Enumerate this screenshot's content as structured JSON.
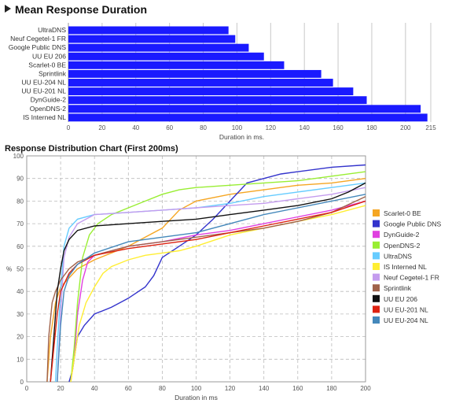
{
  "titles": {
    "bar_title": "Mean Response Duration",
    "line_title": "Response Distribution Chart (First 200ms)"
  },
  "chart_data": [
    {
      "type": "bar",
      "orientation": "horizontal",
      "title": "Mean Response Duration",
      "xlabel": "Duration in ms.",
      "ylabel": "",
      "xlim": [
        0,
        215
      ],
      "xticks": [
        0,
        20,
        40,
        60,
        80,
        100,
        120,
        140,
        160,
        180,
        200,
        215
      ],
      "grid": true,
      "bar_color": "#1a1aff",
      "categories": [
        "UltraDNS",
        "Neuf Cegetel-1 FR",
        "Google Public DNS",
        "UU EU 206",
        "Scarlet-0 BE",
        "Sprintlink",
        "UU EU-204 NL",
        "UU EU-201 NL",
        "DynGuide-2",
        "OpenDNS-2",
        "IS Interned NL"
      ],
      "values": [
        95,
        99,
        107,
        116,
        128,
        150,
        157,
        169,
        177,
        209,
        213
      ]
    },
    {
      "type": "line",
      "title": "Response Distribution Chart (First 200ms)",
      "xlabel": "Duration in ms",
      "ylabel": "%",
      "xlim": [
        0,
        200
      ],
      "ylim": [
        0,
        100
      ],
      "xticks": [
        0,
        20,
        40,
        60,
        80,
        100,
        120,
        140,
        160,
        180,
        200
      ],
      "yticks": [
        0,
        10,
        20,
        30,
        40,
        50,
        60,
        70,
        80,
        90,
        100
      ],
      "grid": true,
      "legend_position": "right",
      "series": [
        {
          "name": "Scarlet-0 BE",
          "color": "#f5a623",
          "points": [
            [
              12,
              0
            ],
            [
              14,
              20
            ],
            [
              17,
              35
            ],
            [
              20,
              42
            ],
            [
              25,
              46
            ],
            [
              30,
              50
            ],
            [
              40,
              54
            ],
            [
              50,
              57
            ],
            [
              60,
              60
            ],
            [
              70,
              64
            ],
            [
              80,
              68
            ],
            [
              90,
              76
            ],
            [
              100,
              80
            ],
            [
              120,
              83
            ],
            [
              140,
              85
            ],
            [
              160,
              87
            ],
            [
              180,
              88
            ],
            [
              200,
              90
            ]
          ]
        },
        {
          "name": "Google Public DNS",
          "color": "#3333cc",
          "points": [
            [
              25,
              0
            ],
            [
              27,
              5
            ],
            [
              30,
              20
            ],
            [
              34,
              25
            ],
            [
              40,
              30
            ],
            [
              50,
              33
            ],
            [
              60,
              37
            ],
            [
              70,
              42
            ],
            [
              75,
              47
            ],
            [
              80,
              55
            ],
            [
              90,
              60
            ],
            [
              100,
              65
            ],
            [
              110,
              72
            ],
            [
              120,
              80
            ],
            [
              130,
              88
            ],
            [
              140,
              90
            ],
            [
              150,
              92
            ],
            [
              160,
              93
            ],
            [
              180,
              95
            ],
            [
              200,
              96
            ]
          ]
        },
        {
          "name": "DynGuide-2",
          "color": "#e040e0",
          "points": [
            [
              26,
              0
            ],
            [
              28,
              10
            ],
            [
              30,
              30
            ],
            [
              33,
              45
            ],
            [
              36,
              53
            ],
            [
              40,
              56
            ],
            [
              50,
              58
            ],
            [
              60,
              60
            ],
            [
              80,
              62
            ],
            [
              100,
              65
            ],
            [
              120,
              67
            ],
            [
              140,
              70
            ],
            [
              160,
              73
            ],
            [
              180,
              76
            ],
            [
              200,
              80
            ]
          ]
        },
        {
          "name": "OpenDNS-2",
          "color": "#99ee33",
          "points": [
            [
              26,
              0
            ],
            [
              28,
              15
            ],
            [
              30,
              35
            ],
            [
              33,
              55
            ],
            [
              37,
              65
            ],
            [
              42,
              70
            ],
            [
              50,
              74
            ],
            [
              60,
              77
            ],
            [
              70,
              80
            ],
            [
              80,
              83
            ],
            [
              90,
              85
            ],
            [
              100,
              86
            ],
            [
              120,
              87
            ],
            [
              140,
              88
            ],
            [
              160,
              89
            ],
            [
              180,
              91
            ],
            [
              200,
              93
            ]
          ]
        },
        {
          "name": "UltraDNS",
          "color": "#66ccff",
          "points": [
            [
              17,
              0
            ],
            [
              18,
              15
            ],
            [
              20,
              40
            ],
            [
              22,
              60
            ],
            [
              25,
              68
            ],
            [
              30,
              72
            ],
            [
              40,
              74
            ],
            [
              60,
              75
            ],
            [
              80,
              76
            ],
            [
              100,
              77
            ],
            [
              120,
              79
            ],
            [
              140,
              82
            ],
            [
              160,
              84
            ],
            [
              180,
              86
            ],
            [
              200,
              88
            ]
          ]
        },
        {
          "name": "IS Interned NL",
          "color": "#ffee33",
          "points": [
            [
              26,
              0
            ],
            [
              28,
              10
            ],
            [
              31,
              25
            ],
            [
              35,
              35
            ],
            [
              40,
              42
            ],
            [
              45,
              48
            ],
            [
              50,
              51
            ],
            [
              60,
              54
            ],
            [
              70,
              56
            ],
            [
              80,
              57
            ],
            [
              90,
              58
            ],
            [
              100,
              60
            ],
            [
              120,
              65
            ],
            [
              140,
              68
            ],
            [
              160,
              71
            ],
            [
              180,
              74
            ],
            [
              200,
              78
            ]
          ]
        },
        {
          "name": "Neuf Cegetel-1 FR",
          "color": "#c49cee",
          "points": [
            [
              18,
              0
            ],
            [
              20,
              30
            ],
            [
              22,
              55
            ],
            [
              25,
              64
            ],
            [
              30,
              70
            ],
            [
              40,
              74
            ],
            [
              60,
              75
            ],
            [
              80,
              76
            ],
            [
              100,
              77
            ],
            [
              120,
              78
            ],
            [
              140,
              79
            ],
            [
              160,
              81
            ],
            [
              180,
              83
            ],
            [
              200,
              86
            ]
          ]
        },
        {
          "name": "Sprintlink",
          "color": "#a0624a",
          "points": [
            [
              12,
              0
            ],
            [
              13,
              20
            ],
            [
              15,
              35
            ],
            [
              17,
              40
            ],
            [
              20,
              45
            ],
            [
              25,
              50
            ],
            [
              30,
              53
            ],
            [
              40,
              56
            ],
            [
              60,
              60
            ],
            [
              80,
              62
            ],
            [
              100,
              64
            ],
            [
              120,
              66
            ],
            [
              140,
              68
            ],
            [
              160,
              71
            ],
            [
              180,
              75
            ],
            [
              200,
              82
            ]
          ]
        },
        {
          "name": "UU EU 206",
          "color": "#111111",
          "points": [
            [
              14,
              0
            ],
            [
              16,
              20
            ],
            [
              18,
              40
            ],
            [
              20,
              50
            ],
            [
              22,
              58
            ],
            [
              25,
              63
            ],
            [
              30,
              67
            ],
            [
              40,
              69
            ],
            [
              60,
              70
            ],
            [
              80,
              71
            ],
            [
              100,
              72
            ],
            [
              120,
              74
            ],
            [
              140,
              76
            ],
            [
              160,
              78
            ],
            [
              180,
              81
            ],
            [
              190,
              84
            ],
            [
              200,
              88
            ]
          ]
        },
        {
          "name": "UU EU-201 NL",
          "color": "#dd2211",
          "points": [
            [
              14,
              0
            ],
            [
              16,
              15
            ],
            [
              18,
              30
            ],
            [
              20,
              40
            ],
            [
              25,
              48
            ],
            [
              30,
              52
            ],
            [
              40,
              56
            ],
            [
              60,
              59
            ],
            [
              80,
              61
            ],
            [
              100,
              63
            ],
            [
              120,
              66
            ],
            [
              140,
              69
            ],
            [
              160,
              72
            ],
            [
              180,
              75
            ],
            [
              200,
              80
            ]
          ]
        },
        {
          "name": "UU EU-204 NL",
          "color": "#4488bb",
          "points": [
            [
              18,
              0
            ],
            [
              20,
              25
            ],
            [
              22,
              40
            ],
            [
              25,
              47
            ],
            [
              30,
              52
            ],
            [
              40,
              57
            ],
            [
              60,
              62
            ],
            [
              80,
              64
            ],
            [
              100,
              66
            ],
            [
              120,
              70
            ],
            [
              140,
              74
            ],
            [
              160,
              77
            ],
            [
              180,
              80
            ],
            [
              200,
              83
            ]
          ]
        }
      ]
    }
  ]
}
